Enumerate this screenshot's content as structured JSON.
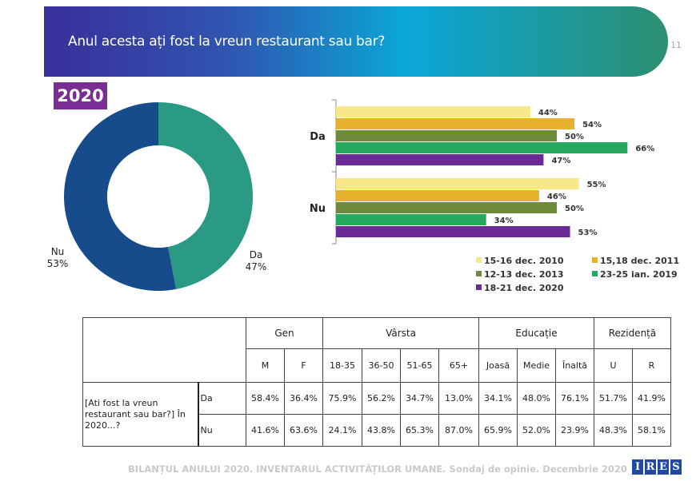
{
  "header": {
    "title": "Anul acesta ați fost la vreun restaurant sau bar?",
    "page_number": "11"
  },
  "year_badge": "2020",
  "chart_data": [
    {
      "type": "pie",
      "donut": true,
      "title": "2020",
      "slices": [
        {
          "label": "Da",
          "value": 47,
          "display": "47%",
          "color": "#2a9a84"
        },
        {
          "label": "Nu",
          "value": 53,
          "display": "53%",
          "color": "#164b8c"
        }
      ]
    },
    {
      "type": "bar",
      "orientation": "horizontal",
      "categories": [
        "Da",
        "Nu"
      ],
      "legend": "bottom-right",
      "grid": false,
      "series": [
        {
          "name": "15-16 dec. 2010",
          "values": [
            44,
            55
          ],
          "color": "#f7e98a"
        },
        {
          "name": "15,18 dec. 2011",
          "values": [
            54,
            46
          ],
          "color": "#e6b12e"
        },
        {
          "name": "12-13 dec. 2013",
          "values": [
            50,
            50
          ],
          "color": "#6e8b3d"
        },
        {
          "name": "23-25 ian. 2019",
          "values": [
            66,
            34
          ],
          "color": "#27a860"
        },
        {
          "name": "18-21 dec. 2020",
          "values": [
            47,
            53
          ],
          "color": "#6b2a96"
        }
      ]
    }
  ],
  "table": {
    "groups": [
      "Gen",
      "Vârsta",
      "Educație",
      "Rezidență"
    ],
    "columns": [
      "M",
      "F",
      "18-35",
      "36-50",
      "51-65",
      "65+",
      "Joasă",
      "Medie",
      "Înaltă",
      "U",
      "R"
    ],
    "question": "[Ati fost la vreun restaurant sau bar?] În 2020...?",
    "rows": [
      {
        "label": "Da",
        "values": [
          "58.4%",
          "36.4%",
          "75.9%",
          "56.2%",
          "34.7%",
          "13.0%",
          "34.1%",
          "48.0%",
          "76.1%",
          "51.7%",
          "41.9%"
        ]
      },
      {
        "label": "Nu",
        "values": [
          "41.6%",
          "63.6%",
          "24.1%",
          "43.8%",
          "65.3%",
          "87.0%",
          "65.9%",
          "52.0%",
          "23.9%",
          "48.3%",
          "58.1%"
        ]
      }
    ]
  },
  "footer": {
    "text": "BILANȚUL ANULUI 2020. INVENTARUL ACTIVITĂȚILOR UMANE. Sondaj de opinie. Decembrie 2020",
    "logo": "IRES"
  }
}
